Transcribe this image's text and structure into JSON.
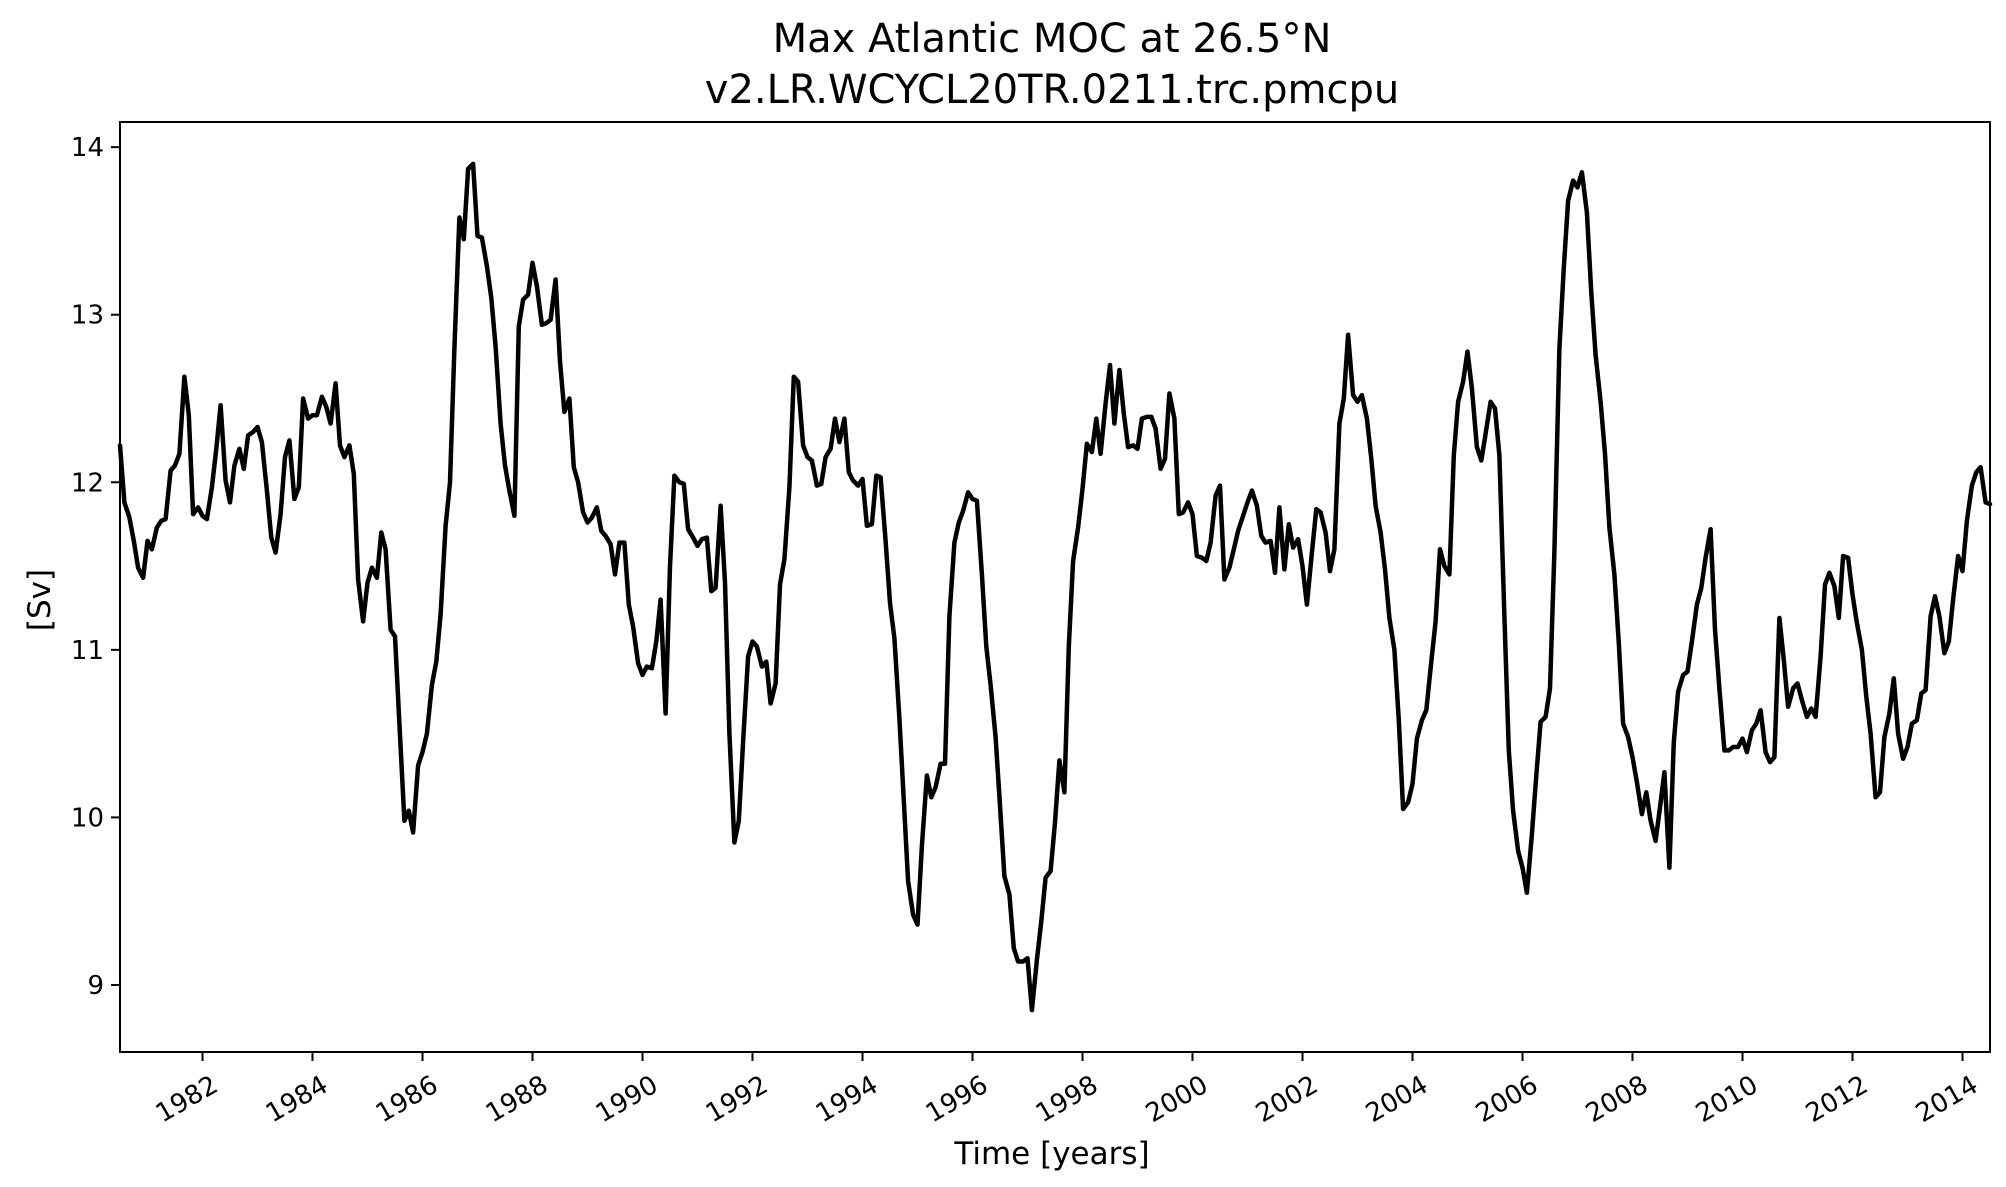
{
  "chart_data": {
    "type": "line",
    "title": "Max Atlantic MOC at 26.5°N",
    "subtitle": "v2.LR.WCYCL20TR.0211.trc.pmcpu",
    "xlabel": "Time [years]",
    "ylabel": "[Sv]",
    "xlim": [
      1980.5,
      2014.5
    ],
    "ylim": [
      8.6,
      14.15
    ],
    "grid": false,
    "line_color": "#000000",
    "x_ticks": [
      1982,
      1984,
      1986,
      1988,
      1990,
      1992,
      1994,
      1996,
      1998,
      2000,
      2002,
      2004,
      2006,
      2008,
      2010,
      2012,
      2014
    ],
    "x_tick_labels": [
      "1982",
      "1984",
      "1986",
      "1988",
      "1990",
      "1992",
      "1994",
      "1996",
      "1998",
      "2000",
      "2002",
      "2004",
      "2006",
      "2008",
      "2010",
      "2012",
      "2014"
    ],
    "y_ticks": [
      9,
      10,
      11,
      12,
      13,
      14
    ],
    "y_tick_labels": [
      "9",
      "10",
      "11",
      "12",
      "13",
      "14"
    ],
    "series": [
      {
        "x": [
          1980.5,
          1980.58,
          1980.67,
          1980.75,
          1980.83,
          1980.92,
          1981.0,
          1981.08,
          1981.17,
          1981.25,
          1981.33,
          1981.42,
          1981.5,
          1981.58,
          1981.67,
          1981.75,
          1981.83,
          1981.92,
          1982.0,
          1982.08,
          1982.17,
          1982.25,
          1982.33,
          1982.42,
          1982.5,
          1982.58,
          1982.67,
          1982.75,
          1982.83,
          1982.92,
          1983.0,
          1983.08,
          1983.17,
          1983.25,
          1983.33,
          1983.42,
          1983.5,
          1983.58,
          1983.67,
          1983.75,
          1983.83,
          1983.92,
          1984.0,
          1984.08,
          1984.17,
          1984.25,
          1984.33,
          1984.42,
          1984.5,
          1984.58,
          1984.67,
          1984.75,
          1984.83,
          1984.92,
          1985.0,
          1985.08,
          1985.17,
          1985.25,
          1985.33,
          1985.42,
          1985.5,
          1985.58,
          1985.67,
          1985.75,
          1985.83,
          1985.92,
          1986.0,
          1986.08,
          1986.17,
          1986.25,
          1986.33,
          1986.42,
          1986.5,
          1986.58,
          1986.67,
          1986.75,
          1986.83,
          1986.92,
          1987.0,
          1987.08,
          1987.17,
          1987.25,
          1987.33,
          1987.42,
          1987.5,
          1987.58,
          1987.67,
          1987.75,
          1987.83,
          1987.92,
          1988.0,
          1988.08,
          1988.17,
          1988.25,
          1988.33,
          1988.42,
          1988.5,
          1988.58,
          1988.67,
          1988.75,
          1988.83,
          1988.92,
          1989.0,
          1989.08,
          1989.17,
          1989.25,
          1989.33,
          1989.42,
          1989.5,
          1989.58,
          1989.67,
          1989.75,
          1989.83,
          1989.92,
          1990.0,
          1990.08,
          1990.17,
          1990.25,
          1990.33,
          1990.42,
          1990.5,
          1990.58,
          1990.67,
          1990.75,
          1990.83,
          1990.92,
          1991.0,
          1991.08,
          1991.17,
          1991.25,
          1991.33,
          1991.42,
          1991.5,
          1991.58,
          1991.67,
          1991.75,
          1991.83,
          1991.92,
          1992.0,
          1992.08,
          1992.17,
          1992.25,
          1992.33,
          1992.42,
          1992.5,
          1992.58,
          1992.67,
          1992.75,
          1992.83,
          1992.92,
          1993.0,
          1993.08,
          1993.17,
          1993.25,
          1993.33,
          1993.42,
          1993.5,
          1993.58,
          1993.67,
          1993.75,
          1993.83,
          1993.92,
          1994.0,
          1994.08,
          1994.17,
          1994.25,
          1994.33,
          1994.42,
          1994.5,
          1994.58,
          1994.67,
          1994.75,
          1994.83,
          1994.92,
          1995.0,
          1995.08,
          1995.17,
          1995.25,
          1995.33,
          1995.42,
          1995.5,
          1995.58,
          1995.67,
          1995.75,
          1995.83,
          1995.92,
          1996.0,
          1996.08,
          1996.17,
          1996.25,
          1996.33,
          1996.42,
          1996.5,
          1996.58,
          1996.67,
          1996.75,
          1996.83,
          1996.92,
          1997.0,
          1997.08,
          1997.17,
          1997.25,
          1997.33,
          1997.42,
          1997.5,
          1997.58,
          1997.67,
          1997.75,
          1997.83,
          1997.92,
          1998.0,
          1998.08,
          1998.17,
          1998.25,
          1998.33,
          1998.42,
          1998.5,
          1998.58,
          1998.67,
          1998.75,
          1998.83,
          1998.92,
          1999.0,
          1999.08,
          1999.17,
          1999.25,
          1999.33,
          1999.42,
          1999.5,
          1999.58,
          1999.67,
          1999.75,
          1999.83,
          1999.92,
          2000.0,
          2000.08,
          2000.17,
          2000.25,
          2000.33,
          2000.42,
          2000.5,
          2000.58,
          2000.67,
          2000.75,
          2000.83,
          2000.92,
          2001.0,
          2001.08,
          2001.17,
          2001.25,
          2001.33,
          2001.42,
          2001.5,
          2001.58,
          2001.67,
          2001.75,
          2001.83,
          2001.92,
          2002.0,
          2002.08,
          2002.17,
          2002.25,
          2002.33,
          2002.42,
          2002.5,
          2002.58,
          2002.67,
          2002.75,
          2002.83,
          2002.92,
          2003.0,
          2003.08,
          2003.17,
          2003.25,
          2003.33,
          2003.42,
          2003.5,
          2003.58,
          2003.67,
          2003.75,
          2003.83,
          2003.92,
          2004.0,
          2004.08,
          2004.17,
          2004.25,
          2004.33,
          2004.42,
          2004.5,
          2004.58,
          2004.67,
          2004.75,
          2004.83,
          2004.92,
          2005.0,
          2005.08,
          2005.17,
          2005.25,
          2005.33,
          2005.42,
          2005.5,
          2005.58,
          2005.67,
          2005.75,
          2005.83,
          2005.92,
          2006.0,
          2006.08,
          2006.17,
          2006.25,
          2006.33,
          2006.42,
          2006.5,
          2006.58,
          2006.67,
          2006.75,
          2006.83,
          2006.92,
          2007.0,
          2007.08,
          2007.17,
          2007.25,
          2007.33,
          2007.42,
          2007.5,
          2007.58,
          2007.67,
          2007.75,
          2007.83,
          2007.92,
          2008.0,
          2008.08,
          2008.17,
          2008.25,
          2008.33,
          2008.42,
          2008.5,
          2008.58,
          2008.67,
          2008.75,
          2008.83,
          2008.92,
          2009.0,
          2009.08,
          2009.17,
          2009.25,
          2009.33,
          2009.42,
          2009.5,
          2009.58,
          2009.67,
          2009.75,
          2009.83,
          2009.92,
          2010.0,
          2010.08,
          2010.17,
          2010.25,
          2010.33,
          2010.42,
          2010.5,
          2010.58,
          2010.67,
          2010.75,
          2010.83,
          2010.92,
          2011.0,
          2011.08,
          2011.17,
          2011.25,
          2011.33,
          2011.42,
          2011.5,
          2011.58,
          2011.67,
          2011.75,
          2011.83,
          2011.92,
          2012.0,
          2012.08,
          2012.17,
          2012.25,
          2012.33,
          2012.42,
          2012.5,
          2012.58,
          2012.67,
          2012.75,
          2012.83,
          2012.92,
          2013.0,
          2013.08,
          2013.17,
          2013.25,
          2013.33,
          2013.42,
          2013.5,
          2013.58,
          2013.67,
          2013.75,
          2013.83,
          2013.92,
          2014.0,
          2014.08,
          2014.17,
          2014.25,
          2014.33,
          2014.42,
          2014.5
        ],
        "values": [
          12.22,
          11.88,
          11.79,
          11.65,
          11.49,
          11.43,
          11.65,
          11.6,
          11.73,
          11.77,
          11.78,
          12.07,
          12.1,
          12.17,
          12.63,
          12.4,
          11.81,
          11.85,
          11.8,
          11.78,
          11.97,
          12.2,
          12.46,
          12.01,
          11.88,
          12.1,
          12.2,
          12.08,
          12.28,
          12.3,
          12.33,
          12.24,
          11.95,
          11.67,
          11.58,
          11.81,
          12.15,
          12.25,
          11.9,
          11.97,
          12.5,
          12.38,
          12.4,
          12.4,
          12.51,
          12.45,
          12.35,
          12.59,
          12.22,
          12.15,
          12.22,
          12.05,
          11.42,
          11.17,
          11.4,
          11.49,
          11.43,
          11.7,
          11.6,
          11.12,
          11.08,
          10.56,
          9.98,
          10.04,
          9.91,
          10.31,
          10.39,
          10.5,
          10.79,
          10.93,
          11.21,
          11.74,
          12.0,
          12.8,
          13.58,
          13.45,
          13.87,
          13.9,
          13.47,
          13.46,
          13.29,
          13.1,
          12.81,
          12.35,
          12.1,
          11.95,
          11.8,
          12.93,
          13.09,
          13.12,
          13.31,
          13.17,
          12.94,
          12.95,
          12.97,
          13.21,
          12.72,
          12.42,
          12.5,
          12.09,
          12.0,
          11.82,
          11.76,
          11.79,
          11.85,
          11.71,
          11.68,
          11.63,
          11.45,
          11.64,
          11.64,
          11.27,
          11.14,
          10.92,
          10.85,
          10.9,
          10.89,
          11.05,
          11.3,
          10.62,
          11.5,
          12.04,
          12.0,
          11.99,
          11.72,
          11.67,
          11.62,
          11.66,
          11.67,
          11.35,
          11.37,
          11.86,
          11.4,
          10.5,
          9.85,
          9.98,
          10.45,
          10.96,
          11.05,
          11.02,
          10.9,
          10.93,
          10.68,
          10.8,
          11.39,
          11.54,
          11.97,
          12.63,
          12.6,
          12.22,
          12.15,
          12.13,
          11.98,
          11.99,
          12.15,
          12.2,
          12.38,
          12.24,
          12.38,
          12.06,
          12.01,
          11.98,
          12.02,
          11.74,
          11.75,
          12.04,
          12.03,
          11.65,
          11.28,
          11.07,
          10.59,
          10.1,
          9.62,
          9.42,
          9.36,
          9.83,
          10.25,
          10.12,
          10.18,
          10.32,
          10.32,
          11.2,
          11.64,
          11.76,
          11.83,
          11.94,
          11.9,
          11.89,
          11.45,
          11.02,
          10.79,
          10.48,
          10.07,
          9.65,
          9.54,
          9.22,
          9.14,
          9.14,
          9.16,
          8.85,
          9.15,
          9.38,
          9.64,
          9.68,
          9.97,
          10.34,
          10.15,
          11.02,
          11.53,
          11.73,
          11.96,
          12.23,
          12.18,
          12.38,
          12.17,
          12.47,
          12.7,
          12.35,
          12.67,
          12.41,
          12.21,
          12.22,
          12.2,
          12.38,
          12.39,
          12.39,
          12.32,
          12.08,
          12.14,
          12.53,
          12.38,
          11.81,
          11.82,
          11.88,
          11.81,
          11.56,
          11.55,
          11.53,
          11.64,
          11.92,
          11.98,
          11.42,
          11.49,
          11.6,
          11.71,
          11.8,
          11.88,
          11.95,
          11.86,
          11.68,
          11.64,
          11.65,
          11.46,
          11.85,
          11.48,
          11.75,
          11.61,
          11.66,
          11.5,
          11.27,
          11.58,
          11.84,
          11.82,
          11.7,
          11.47,
          11.6,
          12.35,
          12.5,
          12.88,
          12.52,
          12.48,
          12.52,
          12.38,
          12.14,
          11.86,
          11.7,
          11.48,
          11.19,
          11.0,
          10.58,
          10.05,
          10.09,
          10.2,
          10.47,
          10.58,
          10.64,
          10.89,
          11.17,
          11.6,
          11.5,
          11.45,
          12.16,
          12.48,
          12.6,
          12.78,
          12.56,
          12.21,
          12.13,
          12.29,
          12.48,
          12.44,
          12.16,
          11.2,
          10.4,
          10.04,
          9.8,
          9.7,
          9.55,
          9.9,
          10.25,
          10.57,
          10.6,
          10.77,
          11.59,
          12.8,
          13.28,
          13.68,
          13.8,
          13.76,
          13.85,
          13.61,
          13.13,
          12.76,
          12.48,
          12.17,
          11.73,
          11.45,
          11.04,
          10.56,
          10.48,
          10.36,
          10.21,
          10.02,
          10.15,
          9.98,
          9.86,
          10.06,
          10.27,
          9.7,
          10.45,
          10.75,
          10.85,
          10.87,
          11.05,
          11.27,
          11.37,
          11.55,
          11.72,
          11.12,
          10.77,
          10.4,
          10.4,
          10.42,
          10.42,
          10.47,
          10.39,
          10.52,
          10.56,
          10.64,
          10.39,
          10.33,
          10.36,
          11.19,
          10.94,
          10.66,
          10.77,
          10.8,
          10.7,
          10.6,
          10.65,
          10.6,
          10.96,
          11.39,
          11.46,
          11.38,
          11.19,
          11.56,
          11.55,
          11.33,
          11.16,
          11.0,
          10.72,
          10.5,
          10.12,
          10.15,
          10.48,
          10.62,
          10.83,
          10.5,
          10.35,
          10.42,
          10.56,
          10.58,
          10.74,
          10.76,
          11.2,
          11.32,
          11.2,
          10.98,
          11.05,
          11.3,
          11.56,
          11.47,
          11.77,
          11.98,
          12.06,
          12.09,
          11.88,
          11.87
        ]
      }
    ]
  }
}
